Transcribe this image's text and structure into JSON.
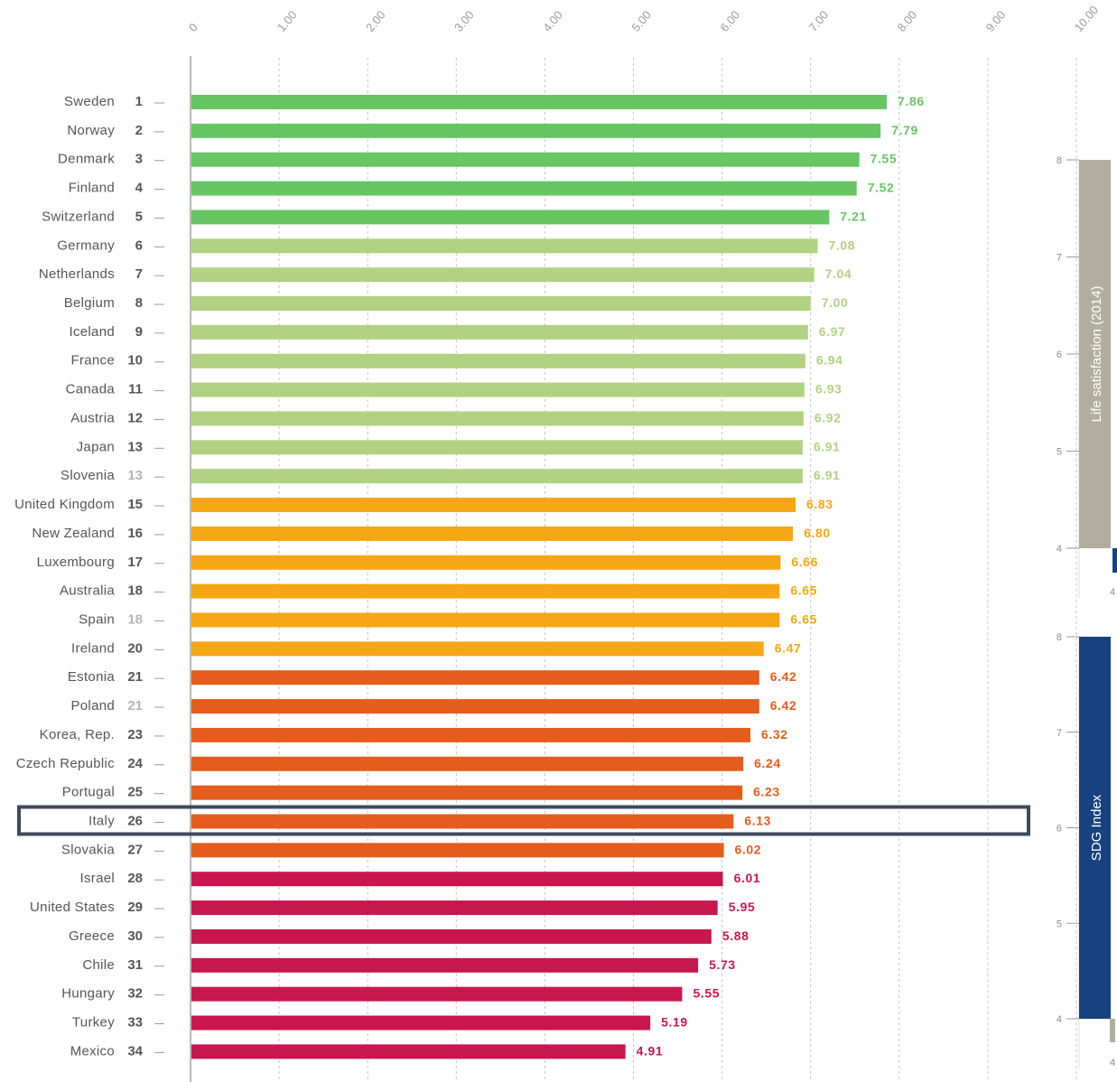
{
  "chart_data": {
    "type": "bar",
    "orientation": "horizontal",
    "xlim": [
      0,
      10
    ],
    "x_ticks": [
      "0",
      "1.00",
      "2.00",
      "3.00",
      "4.00",
      "5.00",
      "6.00",
      "7.00",
      "8.00",
      "9.00",
      "10.00"
    ],
    "grid": "vertical dashed",
    "highlighted_country": "Italy",
    "colors": {
      "green": "#66c664",
      "light_green": "#b0d282",
      "amber": "#f5a615",
      "orange": "#e55c1d",
      "crimson": "#c8174e",
      "gray": "#b1ada0",
      "navy": "#17427f"
    },
    "rows": [
      {
        "country": "Sweden",
        "rank": "1",
        "tie": false,
        "value": 7.86,
        "label": "7.86",
        "group": "green"
      },
      {
        "country": "Norway",
        "rank": "2",
        "tie": false,
        "value": 7.79,
        "label": "7.79",
        "group": "green"
      },
      {
        "country": "Denmark",
        "rank": "3",
        "tie": false,
        "value": 7.55,
        "label": "7.55",
        "group": "green"
      },
      {
        "country": "Finland",
        "rank": "4",
        "tie": false,
        "value": 7.52,
        "label": "7.52",
        "group": "green"
      },
      {
        "country": "Switzerland",
        "rank": "5",
        "tie": false,
        "value": 7.21,
        "label": "7.21",
        "group": "green"
      },
      {
        "country": "Germany",
        "rank": "6",
        "tie": false,
        "value": 7.08,
        "label": "7.08",
        "group": "light_green"
      },
      {
        "country": "Netherlands",
        "rank": "7",
        "tie": false,
        "value": 7.04,
        "label": "7.04",
        "group": "light_green"
      },
      {
        "country": "Belgium",
        "rank": "8",
        "tie": false,
        "value": 7.0,
        "label": "7.00",
        "group": "light_green"
      },
      {
        "country": "Iceland",
        "rank": "9",
        "tie": false,
        "value": 6.97,
        "label": "6.97",
        "group": "light_green"
      },
      {
        "country": "France",
        "rank": "10",
        "tie": false,
        "value": 6.94,
        "label": "6.94",
        "group": "light_green"
      },
      {
        "country": "Canada",
        "rank": "11",
        "tie": false,
        "value": 6.93,
        "label": "6.93",
        "group": "light_green"
      },
      {
        "country": "Austria",
        "rank": "12",
        "tie": false,
        "value": 6.92,
        "label": "6.92",
        "group": "light_green"
      },
      {
        "country": "Japan",
        "rank": "13",
        "tie": false,
        "value": 6.91,
        "label": "6.91",
        "group": "light_green"
      },
      {
        "country": "Slovenia",
        "rank": "13",
        "tie": true,
        "value": 6.91,
        "label": "6.91",
        "group": "light_green"
      },
      {
        "country": "United Kingdom",
        "rank": "15",
        "tie": false,
        "value": 6.83,
        "label": "6.83",
        "group": "amber"
      },
      {
        "country": "New Zealand",
        "rank": "16",
        "tie": false,
        "value": 6.8,
        "label": "6.80",
        "group": "amber"
      },
      {
        "country": "Luxembourg",
        "rank": "17",
        "tie": false,
        "value": 6.66,
        "label": "6.66",
        "group": "amber"
      },
      {
        "country": "Australia",
        "rank": "18",
        "tie": false,
        "value": 6.65,
        "label": "6.65",
        "group": "amber"
      },
      {
        "country": "Spain",
        "rank": "18",
        "tie": true,
        "value": 6.65,
        "label": "6.65",
        "group": "amber"
      },
      {
        "country": "Ireland",
        "rank": "20",
        "tie": false,
        "value": 6.47,
        "label": "6.47",
        "group": "amber"
      },
      {
        "country": "Estonia",
        "rank": "21",
        "tie": false,
        "value": 6.42,
        "label": "6.42",
        "group": "orange"
      },
      {
        "country": "Poland",
        "rank": "21",
        "tie": true,
        "value": 6.42,
        "label": "6.42",
        "group": "orange"
      },
      {
        "country": "Korea, Rep.",
        "rank": "23",
        "tie": false,
        "value": 6.32,
        "label": "6.32",
        "group": "orange"
      },
      {
        "country": "Czech Republic",
        "rank": "24",
        "tie": false,
        "value": 6.24,
        "label": "6.24",
        "group": "orange"
      },
      {
        "country": "Portugal",
        "rank": "25",
        "tie": false,
        "value": 6.23,
        "label": "6.23",
        "group": "orange"
      },
      {
        "country": "Italy",
        "rank": "26",
        "tie": false,
        "value": 6.13,
        "label": "6.13",
        "group": "orange"
      },
      {
        "country": "Slovakia",
        "rank": "27",
        "tie": false,
        "value": 6.02,
        "label": "6.02",
        "group": "orange"
      },
      {
        "country": "Israel",
        "rank": "28",
        "tie": false,
        "value": 6.01,
        "label": "6.01",
        "group": "crimson"
      },
      {
        "country": "United States",
        "rank": "29",
        "tie": false,
        "value": 5.95,
        "label": "5.95",
        "group": "crimson"
      },
      {
        "country": "Greece",
        "rank": "30",
        "tie": false,
        "value": 5.88,
        "label": "5.88",
        "group": "crimson"
      },
      {
        "country": "Chile",
        "rank": "31",
        "tie": false,
        "value": 5.73,
        "label": "5.73",
        "group": "crimson"
      },
      {
        "country": "Hungary",
        "rank": "32",
        "tie": false,
        "value": 5.55,
        "label": "5.55",
        "group": "crimson"
      },
      {
        "country": "Turkey",
        "rank": "33",
        "tie": false,
        "value": 5.19,
        "label": "5.19",
        "group": "crimson"
      },
      {
        "country": "Mexico",
        "rank": "34",
        "tie": false,
        "value": 4.91,
        "label": "4.91",
        "group": "crimson"
      }
    ],
    "side_panels": [
      {
        "title": "Life satisfaction (2014)",
        "ticks": [
          "8",
          "7",
          "6",
          "5",
          "4"
        ],
        "ylim": [
          4,
          8
        ],
        "bottom_label": "4",
        "main_bar": {
          "from": 4,
          "to": 8,
          "group": "gray"
        },
        "stub": {
          "group": "navy"
        }
      },
      {
        "title": "SDG Index",
        "ticks": [
          "8",
          "7",
          "6",
          "5",
          "4"
        ],
        "ylim": [
          4,
          8
        ],
        "bottom_label": "4",
        "main_bar": {
          "from": 4,
          "to": 8,
          "group": "navy"
        },
        "stub": {
          "group": "gray"
        }
      }
    ]
  }
}
